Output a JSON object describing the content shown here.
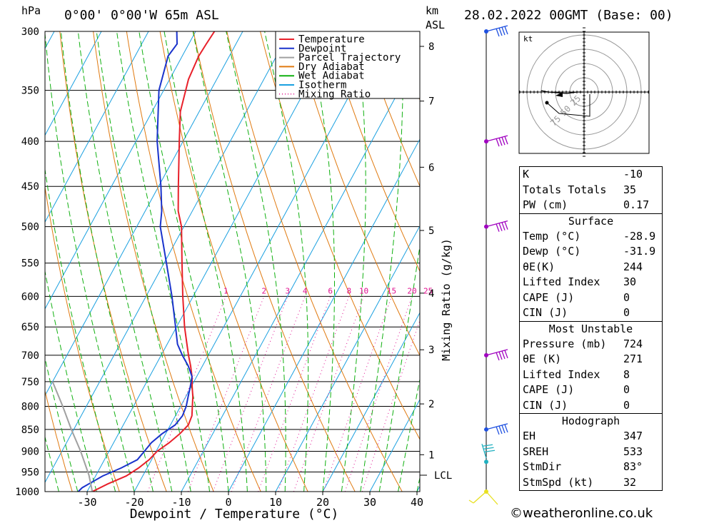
{
  "header": {
    "location": "0°00' 0°00'W 65m ASL",
    "datetime": "28.02.2022 00GMT (Base: 00)",
    "left_unit": "hPa",
    "right_unit_1": "km",
    "right_unit_2": "ASL",
    "x_label": "Dewpoint / Temperature (°C)",
    "y2_label": "Mixing Ratio (g/kg)",
    "lcl_label": "LCL",
    "credit": "©weatheronline.co.uk",
    "hodo_unit": "kt"
  },
  "legend": [
    "Temperature",
    "Dewpoint",
    "Parcel Trajectory",
    "Dry Adiabat",
    "Wet Adiabat",
    "Isotherm",
    "Mixing Ratio"
  ],
  "colors": {
    "temperature": "#e8202a",
    "dewpoint": "#1a33cc",
    "parcel": "#a0a0a0",
    "dry_adiabat": "#e07a10",
    "wet_adiabat": "#10b010",
    "isotherm": "#1aa0e0",
    "mixing_ratio": "#e01090",
    "wind_purple": "#a000c0",
    "wind_blue": "#1e50e0",
    "wind_cyan": "#20b0c0",
    "wind_yellow": "#e8e020"
  },
  "chart_data": {
    "type": "line",
    "title": "0°00' 0°00'W 65m ASL",
    "xlabel": "Dewpoint / Temperature (°C)",
    "ylabel": "hPa",
    "y_scale": "log",
    "xlim": [
      -40,
      40
    ],
    "ylim": [
      1000,
      300
    ],
    "pressure_ticks": [
      300,
      350,
      400,
      450,
      500,
      550,
      600,
      650,
      700,
      750,
      800,
      850,
      900,
      950,
      1000
    ],
    "temp_ticks": [
      -30,
      -20,
      -10,
      0,
      10,
      20,
      30,
      40
    ],
    "km_ticks": [
      {
        "km": 1,
        "p": 908
      },
      {
        "km": 2,
        "p": 795
      },
      {
        "km": 3,
        "p": 690
      },
      {
        "km": 4,
        "p": 595
      },
      {
        "km": 5,
        "p": 505
      },
      {
        "km": 6,
        "p": 428
      },
      {
        "km": 7,
        "p": 360
      },
      {
        "km": 8,
        "p": 312
      }
    ],
    "lcl_p": 958,
    "mixing_ratio_labels": [
      1,
      2,
      3,
      4,
      6,
      8,
      10,
      15,
      20,
      25
    ],
    "series": [
      {
        "name": "Temperature",
        "points": [
          [
            1000,
            -28.9
          ],
          [
            980,
            -26.5
          ],
          [
            960,
            -23.5
          ],
          [
            940,
            -21.8
          ],
          [
            920,
            -20.5
          ],
          [
            900,
            -19.8
          ],
          [
            880,
            -18.2
          ],
          [
            860,
            -17.0
          ],
          [
            840,
            -16.2
          ],
          [
            820,
            -16.5
          ],
          [
            800,
            -17.5
          ],
          [
            780,
            -18.5
          ],
          [
            760,
            -19.8
          ],
          [
            740,
            -21.0
          ],
          [
            720,
            -22.5
          ],
          [
            700,
            -24.2
          ],
          [
            680,
            -25.8
          ],
          [
            650,
            -28.3
          ],
          [
            600,
            -32.2
          ],
          [
            550,
            -36.2
          ],
          [
            500,
            -40.5
          ],
          [
            480,
            -43.0
          ],
          [
            450,
            -45.8
          ],
          [
            400,
            -50.8
          ],
          [
            370,
            -54.0
          ],
          [
            340,
            -56.0
          ],
          [
            320,
            -56.5
          ],
          [
            310,
            -56.3
          ],
          [
            300,
            -56.0
          ]
        ]
      },
      {
        "name": "Dewpoint",
        "points": [
          [
            1000,
            -31.9
          ],
          [
            990,
            -31.5
          ],
          [
            960,
            -28.5
          ],
          [
            940,
            -25.5
          ],
          [
            920,
            -23.0
          ],
          [
            900,
            -22.5
          ],
          [
            880,
            -22.0
          ],
          [
            860,
            -20.8
          ],
          [
            840,
            -19.0
          ],
          [
            820,
            -18.5
          ],
          [
            800,
            -18.8
          ],
          [
            780,
            -19.5
          ],
          [
            760,
            -20.2
          ],
          [
            740,
            -21.0
          ],
          [
            720,
            -23.0
          ],
          [
            700,
            -25.5
          ],
          [
            680,
            -27.8
          ],
          [
            650,
            -30.2
          ],
          [
            600,
            -34.5
          ],
          [
            550,
            -39.5
          ],
          [
            500,
            -45.0
          ],
          [
            480,
            -46.5
          ],
          [
            450,
            -49.5
          ],
          [
            400,
            -55.5
          ],
          [
            350,
            -61.0
          ],
          [
            320,
            -63.0
          ],
          [
            310,
            -62.5
          ],
          [
            300,
            -64.0
          ]
        ]
      },
      {
        "name": "Parcel Trajectory",
        "points": [
          [
            1000,
            -28.9
          ],
          [
            958,
            -31.5
          ],
          [
            900,
            -36.0
          ],
          [
            850,
            -40.5
          ],
          [
            800,
            -45.0
          ],
          [
            750,
            -50.0
          ]
        ]
      }
    ],
    "winds": [
      {
        "p": 300,
        "color": "wind_blue"
      },
      {
        "p": 400,
        "color": "wind_purple"
      },
      {
        "p": 500,
        "color": "wind_purple"
      },
      {
        "p": 700,
        "color": "wind_purple"
      },
      {
        "p": 850,
        "color": "wind_blue"
      },
      {
        "p": 925,
        "color": "wind_cyan"
      },
      {
        "p": 1000,
        "color": "wind_yellow"
      }
    ],
    "hodograph": {
      "ring_labels": [
        "25",
        "50",
        "75"
      ],
      "points": [
        [
          0,
          0
        ],
        [
          -5,
          0
        ],
        [
          -12,
          -1
        ],
        [
          -25,
          0
        ],
        [
          -30,
          1
        ]
      ]
    }
  },
  "stats": {
    "basic": [
      {
        "k": "K",
        "v": "-10"
      },
      {
        "k": "Totals Totals",
        "v": "35"
      },
      {
        "k": "PW (cm)",
        "v": "0.17"
      }
    ],
    "surface": {
      "title": "Surface",
      "rows": [
        {
          "k": "Temp (°C)",
          "v": "-28.9"
        },
        {
          "k": "Dewp (°C)",
          "v": "-31.9"
        },
        {
          "k": "θE(K)",
          "v": "244"
        },
        {
          "k": "Lifted Index",
          "v": "30"
        },
        {
          "k": "CAPE (J)",
          "v": "0"
        },
        {
          "k": "CIN (J)",
          "v": "0"
        }
      ]
    },
    "most_unstable": {
      "title": "Most Unstable",
      "rows": [
        {
          "k": "Pressure (mb)",
          "v": "724"
        },
        {
          "k": "θE (K)",
          "v": "271"
        },
        {
          "k": "Lifted Index",
          "v": "8"
        },
        {
          "k": "CAPE (J)",
          "v": "0"
        },
        {
          "k": "CIN (J)",
          "v": "0"
        }
      ]
    },
    "hodograph": {
      "title": "Hodograph",
      "rows": [
        {
          "k": "EH",
          "v": "347"
        },
        {
          "k": "SREH",
          "v": "533"
        },
        {
          "k": "StmDir",
          "v": "83°"
        },
        {
          "k": "StmSpd (kt)",
          "v": "32"
        }
      ]
    }
  }
}
